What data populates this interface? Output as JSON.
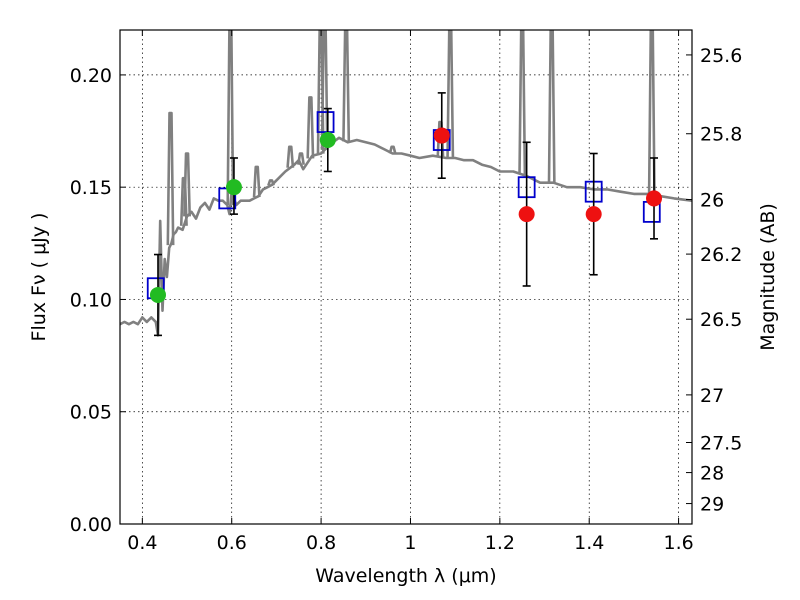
{
  "chart_data": {
    "type": "scatter",
    "title": "",
    "xlabel": "Wavelength  λ (μm)",
    "ylabel": "Flux  Fν  ( μJy )",
    "ylabel_right": "Magnitude (AB)",
    "xlim": [
      0.35,
      1.63
    ],
    "ylim": [
      0.0,
      0.22
    ],
    "grid": true,
    "xticks": [
      0.4,
      0.6,
      0.8,
      1.0,
      1.2,
      1.4,
      1.6
    ],
    "xtick_labels": [
      "0.4",
      "0.6",
      "0.8",
      "1",
      "1.2",
      "1.4",
      "1.6"
    ],
    "yticks": [
      0.0,
      0.05,
      0.1,
      0.15,
      0.2
    ],
    "ytick_labels": [
      "0.00",
      "0.05",
      "0.10",
      "0.15",
      "0.20"
    ],
    "right_ticks": [
      {
        "label": "25.6",
        "flux": 0.2089
      },
      {
        "label": "25.8",
        "flux": 0.1738
      },
      {
        "label": "26",
        "flux": 0.1445
      },
      {
        "label": "26.2",
        "flux": 0.1202
      },
      {
        "label": "26.5",
        "flux": 0.0912
      },
      {
        "label": "27",
        "flux": 0.0575
      },
      {
        "label": "27.5",
        "flux": 0.0363
      },
      {
        "label": "28",
        "flux": 0.0229
      },
      {
        "label": "29",
        "flux": 0.0091
      }
    ],
    "colors": {
      "template": "#808080",
      "model": "#0000cc",
      "green": "#22bb22",
      "red": "#ee1111",
      "errorbar": "#000000"
    },
    "template_spectrum": {
      "x": [
        0.35,
        0.36,
        0.37,
        0.38,
        0.39,
        0.4,
        0.41,
        0.42,
        0.43,
        0.435,
        0.44,
        0.445,
        0.45,
        0.455,
        0.46,
        0.465,
        0.47,
        0.475,
        0.48,
        0.49,
        0.5,
        0.51,
        0.52,
        0.53,
        0.54,
        0.55,
        0.56,
        0.57,
        0.58,
        0.59,
        0.595,
        0.6,
        0.61,
        0.62,
        0.63,
        0.64,
        0.65,
        0.66,
        0.67,
        0.68,
        0.69,
        0.7,
        0.72,
        0.74,
        0.75,
        0.76,
        0.78,
        0.8,
        0.82,
        0.84,
        0.86,
        0.88,
        0.9,
        0.92,
        0.94,
        0.96,
        0.98,
        1.0,
        1.02,
        1.05,
        1.08,
        1.1,
        1.12,
        1.14,
        1.16,
        1.18,
        1.2,
        1.23,
        1.26,
        1.29,
        1.32,
        1.35,
        1.38,
        1.41,
        1.44,
        1.47,
        1.5,
        1.53,
        1.56,
        1.59,
        1.63
      ],
      "y": [
        0.089,
        0.09,
        0.089,
        0.09,
        0.089,
        0.092,
        0.09,
        0.092,
        0.09,
        0.084,
        0.135,
        0.095,
        0.118,
        0.11,
        0.123,
        0.125,
        0.129,
        0.13,
        0.132,
        0.131,
        0.137,
        0.139,
        0.136,
        0.141,
        0.143,
        0.14,
        0.145,
        0.144,
        0.144,
        0.142,
        0.138,
        0.148,
        0.142,
        0.144,
        0.144,
        0.144,
        0.145,
        0.146,
        0.149,
        0.15,
        0.151,
        0.153,
        0.157,
        0.16,
        0.162,
        0.158,
        0.164,
        0.165,
        0.169,
        0.172,
        0.17,
        0.171,
        0.17,
        0.169,
        0.167,
        0.165,
        0.165,
        0.164,
        0.163,
        0.164,
        0.163,
        0.163,
        0.162,
        0.162,
        0.16,
        0.159,
        0.157,
        0.157,
        0.155,
        0.152,
        0.152,
        0.15,
        0.15,
        0.149,
        0.149,
        0.148,
        0.147,
        0.147,
        0.146,
        0.145,
        0.144
      ]
    },
    "emission_lines": [
      {
        "x": 0.463,
        "y": 0.183
      },
      {
        "x": 0.493,
        "y": 0.154
      },
      {
        "x": 0.5,
        "y": 0.165
      },
      {
        "x": 0.597,
        "y": 0.22
      },
      {
        "x": 0.656,
        "y": 0.159
      },
      {
        "x": 0.688,
        "y": 0.153
      },
      {
        "x": 0.731,
        "y": 0.168
      },
      {
        "x": 0.755,
        "y": 0.165
      },
      {
        "x": 0.776,
        "y": 0.19
      },
      {
        "x": 0.799,
        "y": 0.22
      },
      {
        "x": 0.808,
        "y": 0.22
      },
      {
        "x": 0.856,
        "y": 0.22
      },
      {
        "x": 0.96,
        "y": 0.168
      },
      {
        "x": 1.067,
        "y": 0.179
      },
      {
        "x": 1.089,
        "y": 0.22
      },
      {
        "x": 1.25,
        "y": 0.22
      },
      {
        "x": 1.316,
        "y": 0.22
      },
      {
        "x": 1.54,
        "y": 0.22
      }
    ],
    "series": [
      {
        "marker": "open-square",
        "x": [
          0.43,
          0.59,
          0.81,
          1.07,
          1.26,
          1.41,
          1.54
        ],
        "y": [
          0.105,
          0.145,
          0.179,
          0.171,
          0.15,
          0.148,
          0.139
        ]
      },
      {
        "marker": "filled-circle-green",
        "x": [
          0.435,
          0.605,
          0.815
        ],
        "y": [
          0.102,
          0.15,
          0.171
        ],
        "err_low": [
          0.018,
          0.012,
          0.014
        ],
        "err_high": [
          0.018,
          0.013,
          0.014
        ]
      },
      {
        "marker": "filled-circle-red",
        "x": [
          1.07,
          1.26,
          1.41,
          1.545
        ],
        "y": [
          0.173,
          0.138,
          0.138,
          0.145
        ],
        "err_low": [
          0.019,
          0.032,
          0.027,
          0.018
        ],
        "err_high": [
          0.019,
          0.032,
          0.027,
          0.018
        ]
      }
    ]
  }
}
